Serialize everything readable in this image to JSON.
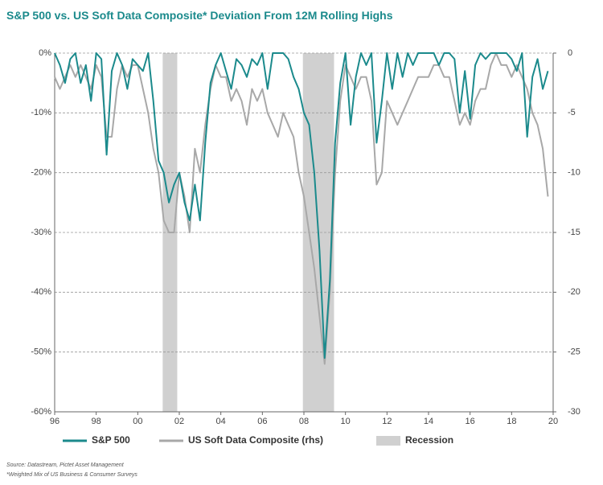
{
  "chart_data": {
    "type": "line",
    "title": "S&P 500 vs. US Soft Data Composite* Deviation From 12M Rolling Highs",
    "source": "Source: Datastream, Pictet Asset Management",
    "footnote": "*Weighted Mix of US Business & Consumer Surveys",
    "x": [
      1996,
      1996.25,
      1996.5,
      1996.75,
      1997,
      1997.25,
      1997.5,
      1997.75,
      1998,
      1998.25,
      1998.5,
      1998.75,
      1999,
      1999.25,
      1999.5,
      1999.75,
      2000,
      2000.25,
      2000.5,
      2000.75,
      2001,
      2001.25,
      2001.5,
      2001.75,
      2002,
      2002.25,
      2002.5,
      2002.75,
      2003,
      2003.25,
      2003.5,
      2003.75,
      2004,
      2004.25,
      2004.5,
      2004.75,
      2005,
      2005.25,
      2005.5,
      2005.75,
      2006,
      2006.25,
      2006.5,
      2006.75,
      2007,
      2007.25,
      2007.5,
      2007.75,
      2008,
      2008.25,
      2008.5,
      2008.75,
      2009,
      2009.25,
      2009.5,
      2009.75,
      2010,
      2010.25,
      2010.5,
      2010.75,
      2011,
      2011.25,
      2011.5,
      2011.75,
      2012,
      2012.25,
      2012.5,
      2012.75,
      2013,
      2013.25,
      2013.5,
      2013.75,
      2014,
      2014.25,
      2014.5,
      2014.75,
      2015,
      2015.25,
      2015.5,
      2015.75,
      2016,
      2016.25,
      2016.5,
      2016.75,
      2017,
      2017.25,
      2017.5,
      2017.75,
      2018,
      2018.25,
      2018.5,
      2018.75,
      2019,
      2019.25,
      2019.5,
      2019.75
    ],
    "series": [
      {
        "name": "S&P 500",
        "color": "#1b8a8c",
        "axis": "y",
        "values": [
          0,
          -2,
          -5,
          -1,
          0,
          -5,
          -2,
          -8,
          0,
          -1,
          -17,
          -3,
          0,
          -2,
          -6,
          -1,
          -2,
          -3,
          0,
          -8,
          -18,
          -20,
          -25,
          -22,
          -20,
          -25,
          -28,
          -22,
          -28,
          -15,
          -5,
          -2,
          0,
          -3,
          -6,
          -1,
          -2,
          -4,
          -1,
          -2,
          0,
          -6,
          0,
          0,
          0,
          -1,
          -4,
          -6,
          -10,
          -12,
          -20,
          -33,
          -51,
          -38,
          -15,
          -5,
          0,
          -12,
          -4,
          0,
          -2,
          0,
          -15,
          -8,
          0,
          -6,
          0,
          -4,
          0,
          -2,
          0,
          0,
          0,
          0,
          -2,
          0,
          0,
          -1,
          -10,
          -3,
          -11,
          -2,
          0,
          -1,
          0,
          0,
          0,
          0,
          -1,
          -3,
          0,
          -14,
          -4,
          -1,
          -6,
          -3
        ]
      },
      {
        "name": "US Soft Data Composite (rhs)",
        "color": "#a8a8a8",
        "axis": "y2",
        "values": [
          -2,
          -3,
          -2,
          -1,
          -2,
          -1,
          -2,
          -3,
          -1,
          -2,
          -7,
          -7,
          -3,
          -1,
          -2,
          -1,
          -1,
          -3,
          -5,
          -8,
          -10,
          -14,
          -15,
          -15,
          -10,
          -12,
          -15,
          -8,
          -10,
          -6,
          -3,
          -1,
          -2,
          -2,
          -4,
          -3,
          -4,
          -6,
          -3,
          -4,
          -3,
          -5,
          -6,
          -7,
          -5,
          -6,
          -7,
          -10,
          -12,
          -15,
          -18,
          -22,
          -26,
          -20,
          -10,
          -4,
          -1,
          -2,
          -3,
          -2,
          -2,
          -4,
          -11,
          -10,
          -4,
          -5,
          -6,
          -5,
          -4,
          -3,
          -2,
          -2,
          -2,
          -1,
          -1,
          -2,
          -2,
          -4,
          -6,
          -5,
          -6,
          -4,
          -3,
          -3,
          -1,
          0,
          -1,
          -1,
          -2,
          -1,
          -2,
          -3,
          -5,
          -6,
          -8,
          -12
        ]
      }
    ],
    "recessions": {
      "name": "Recession",
      "color": "#d0d0d0",
      "ranges": [
        [
          2001.2,
          2001.9
        ],
        [
          2007.95,
          2009.45
        ]
      ]
    },
    "xlim": [
      1996,
      2020
    ],
    "xticks": [
      {
        "value": 1996,
        "label": "96"
      },
      {
        "value": 1998,
        "label": "98"
      },
      {
        "value": 2000,
        "label": "00"
      },
      {
        "value": 2002,
        "label": "02"
      },
      {
        "value": 2004,
        "label": "04"
      },
      {
        "value": 2006,
        "label": "06"
      },
      {
        "value": 2008,
        "label": "08"
      },
      {
        "value": 2010,
        "label": "10"
      },
      {
        "value": 2012,
        "label": "12"
      },
      {
        "value": 2014,
        "label": "14"
      },
      {
        "value": 2016,
        "label": "16"
      },
      {
        "value": 2018,
        "label": "18"
      },
      {
        "value": 2020,
        "label": "20"
      }
    ],
    "ylim": [
      -60,
      0
    ],
    "yticks": [
      {
        "value": 0,
        "label": "0%"
      },
      {
        "value": -10,
        "label": "-10%"
      },
      {
        "value": -20,
        "label": "-20%"
      },
      {
        "value": -30,
        "label": "-30%"
      },
      {
        "value": -40,
        "label": "-40%"
      },
      {
        "value": -50,
        "label": "-50%"
      },
      {
        "value": -60,
        "label": "-60%"
      }
    ],
    "y2lim": [
      -30,
      0
    ],
    "y2ticks": [
      0,
      -5,
      -10,
      -15,
      -20,
      -25,
      -30
    ],
    "grid": true
  }
}
